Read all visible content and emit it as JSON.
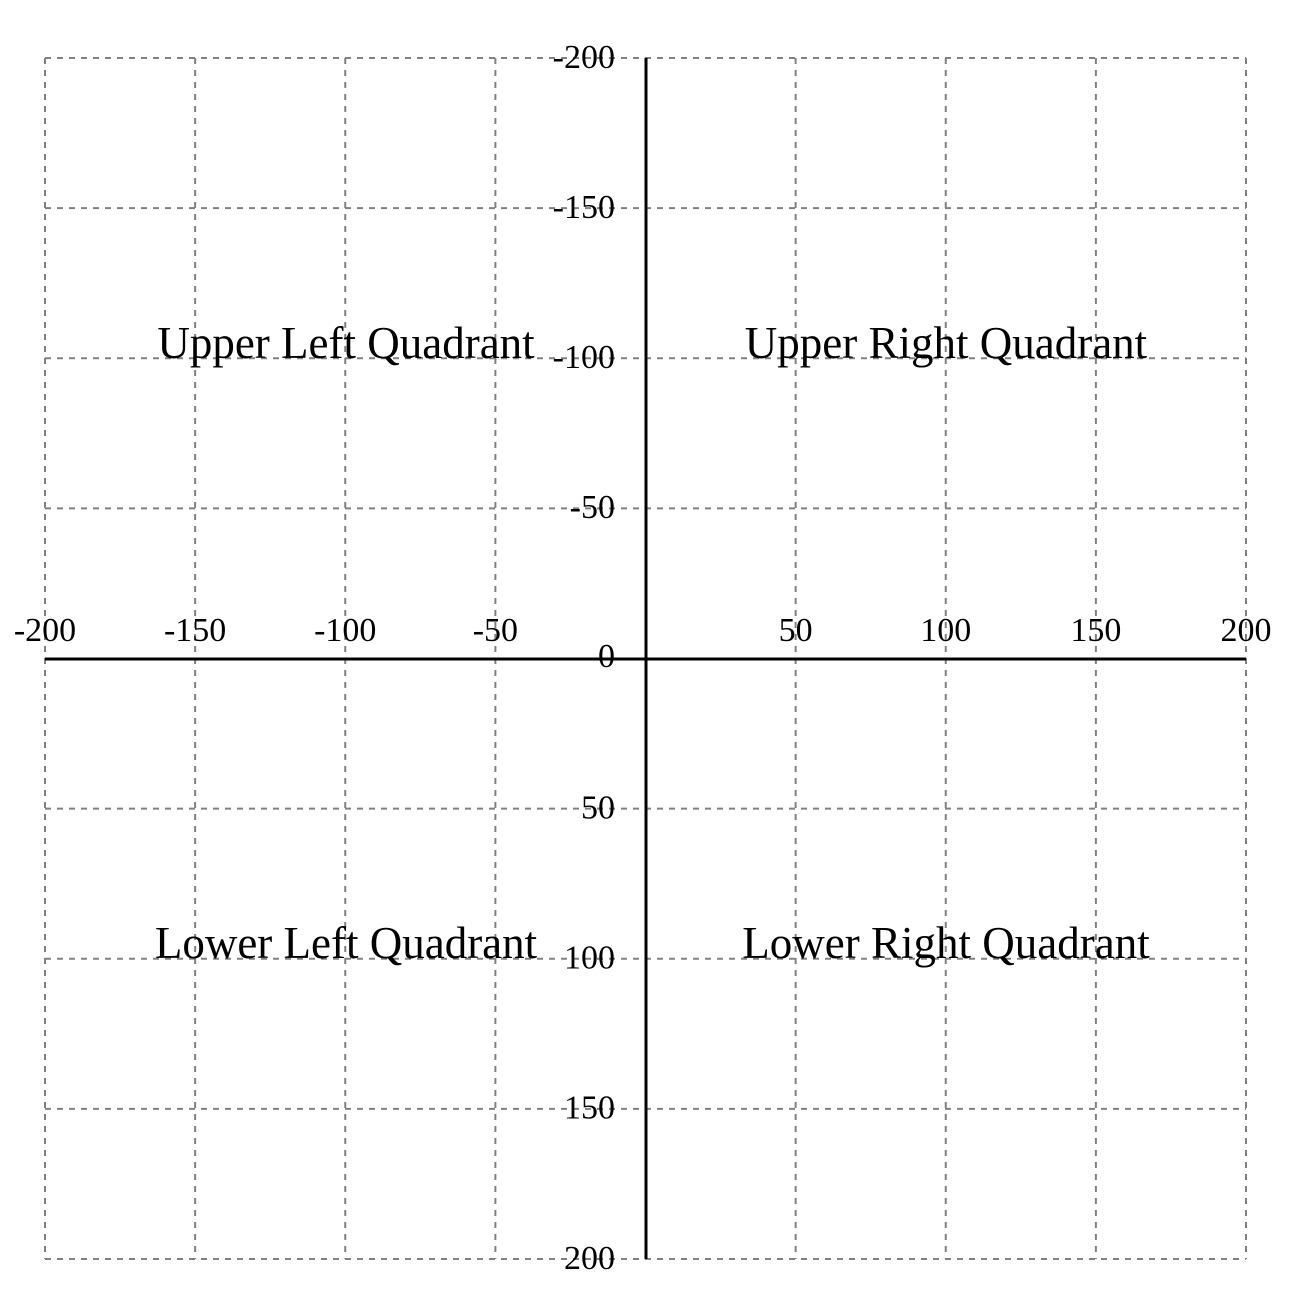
{
  "grid": {
    "x_range": [
      -200,
      200
    ],
    "y_range": [
      -200,
      200
    ],
    "step": 50,
    "y_direction": "down",
    "line_style": "dashed",
    "grid_color": "#808080",
    "axis_color": "#000000"
  },
  "x_ticks": [
    "-200",
    "-150",
    "-100",
    "-50",
    "50",
    "100",
    "150",
    "200"
  ],
  "origin_label": "0",
  "y_ticks": [
    "-200",
    "-150",
    "-100",
    "-50",
    "50",
    "100",
    "150",
    "200"
  ],
  "quadrants": {
    "upper_left": "Upper Left Quadrant",
    "upper_right": "Upper Right Quadrant",
    "lower_left": "Lower Left Quadrant",
    "lower_right": "Lower Right Quadrant"
  }
}
